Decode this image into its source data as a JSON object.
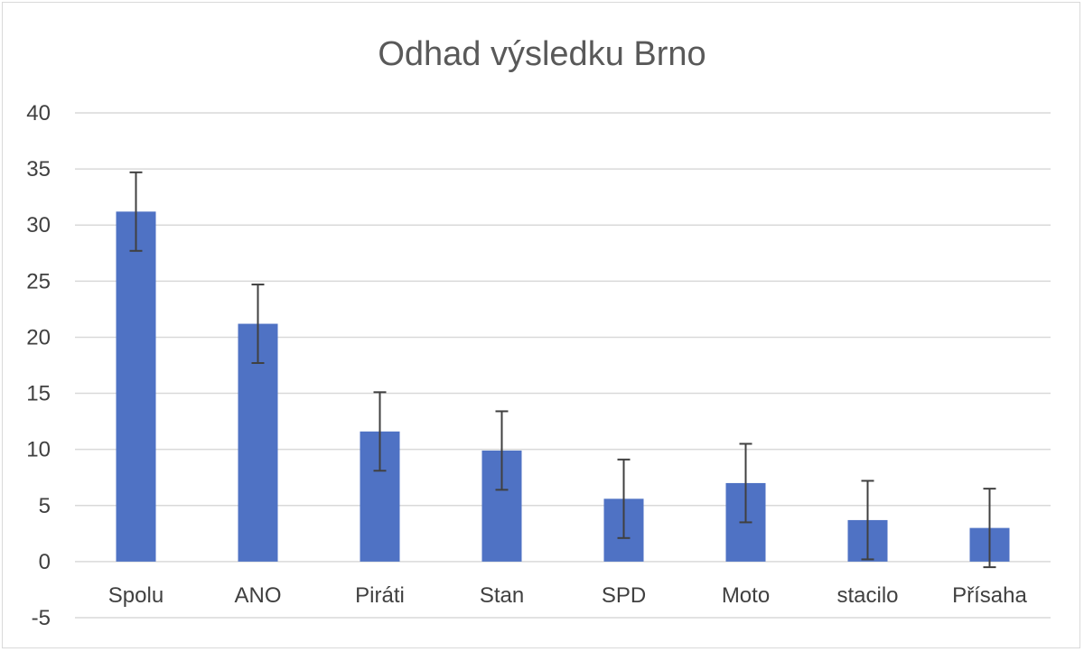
{
  "chart_data": {
    "type": "bar",
    "title": "Odhad výsledku Brno",
    "categories": [
      "Spolu",
      "ANO",
      "Piráti",
      "Stan",
      "SPD",
      "Moto",
      "stacilo",
      "Přísaha"
    ],
    "values": [
      31.2,
      21.2,
      11.6,
      9.9,
      5.6,
      7.0,
      3.7,
      3.0
    ],
    "error_plus_minus": 3.5,
    "ylim": [
      -5,
      40
    ],
    "yticks": [
      "40",
      "35",
      "30",
      "25",
      "20",
      "15",
      "10",
      "5",
      "0",
      "-5"
    ],
    "xlabel": "",
    "ylabel": "",
    "grid": true,
    "legend": "none",
    "bar_color": "#4F72C4",
    "error_bar_color": "#404040",
    "grid_color": "#d9d9d9"
  }
}
